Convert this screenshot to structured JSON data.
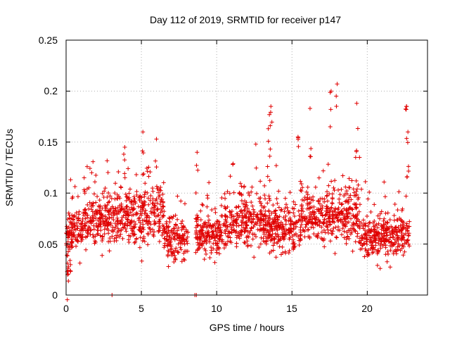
{
  "chart_data": {
    "type": "scatter",
    "title": "Day 112 of 2019, SRMTID for receiver p147",
    "xlabel": "GPS time / hours",
    "ylabel": "SRMTID / TECUs",
    "xlim": [
      0,
      24
    ],
    "ylim": [
      0,
      0.25
    ],
    "xticks": [
      0,
      5,
      10,
      15,
      20
    ],
    "xtick_labels": [
      "0",
      "5",
      "10",
      "15",
      "20"
    ],
    "yticks": [
      0,
      0.05,
      0.1,
      0.15,
      0.2,
      0.25
    ],
    "ytick_labels": [
      "0",
      "0.05",
      "0.1",
      "0.15",
      "0.2",
      "0.25"
    ],
    "grid": true,
    "marker": "+",
    "color": "#e00000",
    "gap_hours": [
      8.1,
      8.6
    ],
    "segments": [
      {
        "t0": 0.0,
        "t1": 1.5,
        "level": 0.065,
        "spread": 0.022
      },
      {
        "t0": 1.5,
        "t1": 4.0,
        "level": 0.075,
        "spread": 0.025
      },
      {
        "t0": 4.0,
        "t1": 6.5,
        "level": 0.078,
        "spread": 0.028
      },
      {
        "t0": 6.5,
        "t1": 8.1,
        "level": 0.055,
        "spread": 0.02
      },
      {
        "t0": 8.6,
        "t1": 10.5,
        "level": 0.06,
        "spread": 0.02
      },
      {
        "t0": 10.5,
        "t1": 13.5,
        "level": 0.072,
        "spread": 0.025
      },
      {
        "t0": 13.5,
        "t1": 15.5,
        "level": 0.065,
        "spread": 0.022
      },
      {
        "t0": 15.5,
        "t1": 19.5,
        "level": 0.08,
        "spread": 0.03
      },
      {
        "t0": 19.5,
        "t1": 22.8,
        "level": 0.058,
        "spread": 0.02
      }
    ],
    "notable_peaks": [
      {
        "x": 0.1,
        "y": 0.02
      },
      {
        "x": 0.4,
        "y": 0.095
      },
      {
        "x": 1.2,
        "y": 0.115
      },
      {
        "x": 1.7,
        "y": 0.12
      },
      {
        "x": 3.9,
        "y": 0.145
      },
      {
        "x": 5.1,
        "y": 0.16
      },
      {
        "x": 6.0,
        "y": 0.153
      },
      {
        "x": 8.7,
        "y": 0.14
      },
      {
        "x": 12.6,
        "y": 0.148
      },
      {
        "x": 13.5,
        "y": 0.177
      },
      {
        "x": 13.6,
        "y": 0.185
      },
      {
        "x": 15.4,
        "y": 0.155
      },
      {
        "x": 16.2,
        "y": 0.183
      },
      {
        "x": 17.6,
        "y": 0.2
      },
      {
        "x": 18.0,
        "y": 0.207
      },
      {
        "x": 19.3,
        "y": 0.188
      },
      {
        "x": 22.6,
        "y": 0.185
      },
      {
        "x": 22.7,
        "y": 0.16
      }
    ],
    "zero_marks": [
      {
        "x": 3.05,
        "y": 0.0
      },
      {
        "x": 8.55,
        "y": 0.0
      },
      {
        "x": 8.65,
        "y": 0.0
      }
    ]
  }
}
